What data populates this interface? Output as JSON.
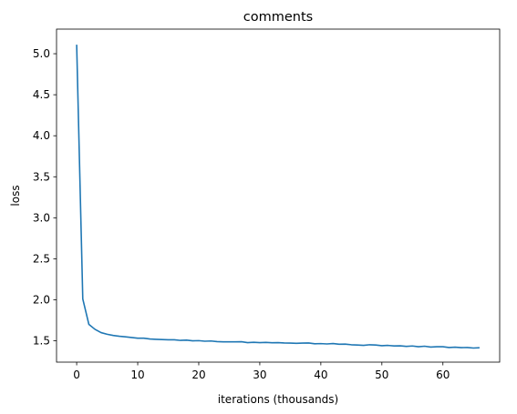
{
  "chart_data": {
    "type": "line",
    "title": "comments",
    "xlabel": "iterations (thousands)",
    "ylabel": "loss",
    "xlim": [
      -3.3,
      69.3
    ],
    "ylim": [
      1.24,
      5.3
    ],
    "xticks": [
      0,
      10,
      20,
      30,
      40,
      50,
      60
    ],
    "yticks": [
      1.5,
      2.0,
      2.5,
      3.0,
      3.5,
      4.0,
      4.5,
      5.0
    ],
    "grid": false,
    "series": [
      {
        "color": "#1f77b4",
        "x": [
          0,
          1,
          2,
          3,
          4,
          5,
          6,
          7,
          8,
          9,
          10,
          11,
          12,
          13,
          14,
          15,
          16,
          17,
          18,
          19,
          20,
          21,
          22,
          23,
          24,
          25,
          26,
          27,
          28,
          29,
          30,
          31,
          32,
          33,
          34,
          35,
          36,
          37,
          38,
          39,
          40,
          41,
          42,
          43,
          44,
          45,
          46,
          47,
          48,
          49,
          50,
          51,
          52,
          53,
          54,
          55,
          56,
          57,
          58,
          59,
          60,
          61,
          62,
          63,
          64,
          65,
          66
        ],
        "y": [
          5.11,
          2.01,
          1.7,
          1.64,
          1.6,
          1.58,
          1.565,
          1.555,
          1.548,
          1.54,
          1.532,
          1.532,
          1.522,
          1.518,
          1.515,
          1.512,
          1.512,
          1.505,
          1.508,
          1.5,
          1.502,
          1.495,
          1.498,
          1.49,
          1.488,
          1.487,
          1.488,
          1.489,
          1.478,
          1.482,
          1.478,
          1.481,
          1.476,
          1.478,
          1.474,
          1.472,
          1.47,
          1.472,
          1.474,
          1.464,
          1.466,
          1.462,
          1.467,
          1.458,
          1.46,
          1.452,
          1.449,
          1.445,
          1.452,
          1.449,
          1.44,
          1.444,
          1.438,
          1.439,
          1.432,
          1.437,
          1.428,
          1.434,
          1.424,
          1.428,
          1.428,
          1.418,
          1.422,
          1.417,
          1.418,
          1.412,
          1.415
        ]
      }
    ]
  }
}
